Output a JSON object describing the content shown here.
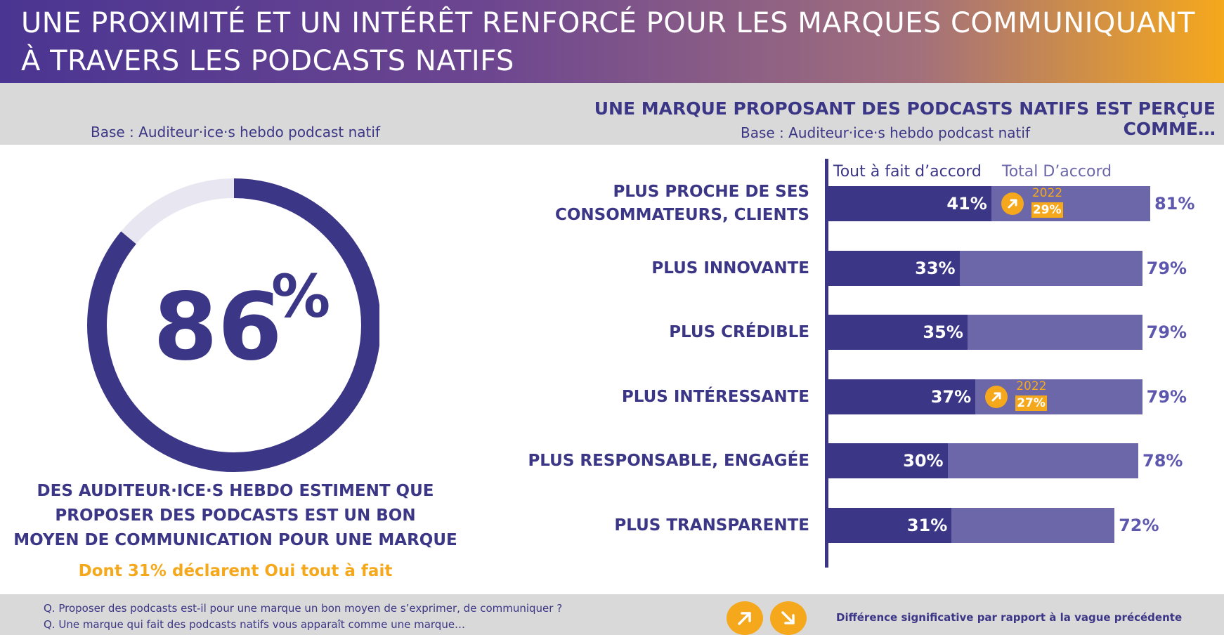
{
  "header": {
    "title_line1": "UNE PROXIMITÉ ET UN INTÉRÊT RENFORCÉ POUR LES MARQUES COMMUNIQUANT",
    "title_line2": "À TRAVERS LES PODCASTS NATIFS"
  },
  "left": {
    "base": "Base : Auditeur·ice·s hebdo podcast natif",
    "donut_value": 86,
    "donut_number": "86",
    "donut_suffix": "%",
    "statement_line1": "DES AUDITEUR·ICE·S HEBDO ESTIMENT QUE",
    "statement_line2": "PROPOSER DES PODCASTS EST UN BON",
    "statement_line3": "MOYEN DE COMMUNICATION POUR UNE MARQUE",
    "sub_statement": "Dont 31% déclarent Oui tout à fait"
  },
  "right": {
    "subtitle": "UNE MARQUE PROPOSANT DES PODCASTS NATIFS EST PERÇUE COMME…",
    "base": "Base : Auditeur·ice·s hebdo podcast natif"
  },
  "colors": {
    "dark_purple": "#3b3685",
    "light_purple": "#6b67a8",
    "donut_remainder": "#e8e7f1",
    "accent_orange": "#f5a81c"
  },
  "chart_data": {
    "type": "bar",
    "orientation": "horizontal",
    "legend": [
      "Tout à fait d’accord",
      "Total D’accord"
    ],
    "categories": [
      "PLUS PROCHE DE SES CONSOMMATEURS, CLIENTS",
      "PLUS INNOVANTE",
      "PLUS CRÉDIBLE",
      "PLUS INTÉRESSANTE",
      "PLUS RESPONSABLE, ENGAGÉE",
      "PLUS TRANSPARENTE"
    ],
    "category_lines": [
      [
        "PLUS PROCHE DE SES",
        "CONSOMMATEURS, CLIENTS"
      ],
      [
        "PLUS INNOVANTE"
      ],
      [
        "PLUS CRÉDIBLE"
      ],
      [
        "PLUS INTÉRESSANTE"
      ],
      [
        "PLUS RESPONSABLE, ENGAGÉE"
      ],
      [
        "PLUS TRANSPARENTE"
      ]
    ],
    "series": [
      {
        "name": "Tout à fait d’accord",
        "values": [
          41,
          33,
          35,
          37,
          30,
          31
        ],
        "labels": [
          "41%",
          "33%",
          "35%",
          "37%",
          "30%",
          "31%"
        ]
      },
      {
        "name": "Total D’accord",
        "values": [
          81,
          79,
          79,
          79,
          78,
          72
        ],
        "labels": [
          "81%",
          "79%",
          "79%",
          "79%",
          "78%",
          "72%"
        ]
      }
    ],
    "comparisons": [
      {
        "category_index": 0,
        "year": "2022",
        "value": "29%",
        "direction": "up"
      },
      {
        "category_index": 3,
        "year": "2022",
        "value": "27%",
        "direction": "up"
      }
    ]
  },
  "footer": {
    "q1": "Q. Proposer des podcasts est-il pour une marque un bon moyen de s’exprimer, de communiquer ?",
    "q2": "Q. Une marque qui fait des podcasts natifs vous apparaît comme une marque…",
    "legend_note": "Différence significative par rapport à la vague précédente",
    "icons": [
      "arrow-up-right-icon",
      "arrow-down-right-icon"
    ]
  }
}
